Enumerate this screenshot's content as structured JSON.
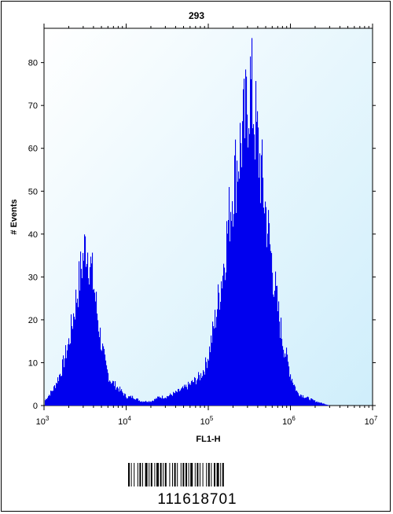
{
  "chart_data": {
    "type": "area",
    "title": "293",
    "xlabel": "FL1-H",
    "ylabel": "# Events",
    "x_scale": "log",
    "xlim": [
      1000,
      10000000
    ],
    "ylim": [
      0,
      88
    ],
    "x_ticks": [
      {
        "value": 1000,
        "base": "10",
        "exp": "3"
      },
      {
        "value": 10000,
        "base": "10",
        "exp": "4"
      },
      {
        "value": 100000,
        "base": "10",
        "exp": "5"
      },
      {
        "value": 1000000,
        "base": "10",
        "exp": "6"
      },
      {
        "value": 10000000,
        "base": "10",
        "exp": "7"
      }
    ],
    "y_ticks": [
      "0",
      "10",
      "20",
      "30",
      "40",
      "50",
      "60",
      "70",
      "80"
    ],
    "fill_color": "#0000ee",
    "background_color": "#dff1fb",
    "series": [
      {
        "x": [
          1000,
          1300,
          1600,
          2000,
          2300,
          2600,
          2800,
          3000,
          3200,
          3400,
          3700,
          4000,
          4500,
          5000,
          5600,
          6300,
          7100,
          8000,
          9000,
          10000,
          12000,
          15000,
          20000,
          25000,
          30000,
          40000,
          50000,
          60000,
          70000,
          80000,
          90000,
          100000,
          120000,
          150000,
          180000,
          200000,
          230000,
          250000,
          280000,
          300000,
          320000,
          350000,
          400000,
          450000,
          500000,
          600000,
          700000,
          800000,
          1000000,
          1200000,
          1500000,
          2000000,
          3000000,
          5000000,
          10000000
        ],
        "y": [
          1,
          4,
          8,
          15,
          22,
          28,
          32,
          35,
          38,
          36,
          32,
          28,
          20,
          14,
          9,
          6,
          5,
          4,
          3,
          2,
          2,
          1,
          1,
          2,
          2,
          3,
          4,
          5,
          6,
          7,
          9,
          12,
          20,
          32,
          45,
          52,
          58,
          62,
          66,
          72,
          75,
          70,
          60,
          52,
          45,
          32,
          22,
          15,
          7,
          3,
          2,
          1,
          0,
          0,
          0
        ]
      }
    ]
  },
  "barcode": {
    "number": "111618701"
  }
}
